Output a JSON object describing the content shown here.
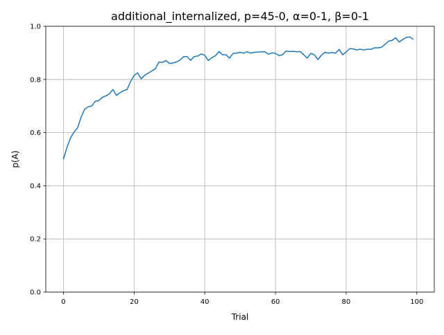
{
  "chart_data": {
    "type": "line",
    "title": "additional_internalized, p=45-0, α=0-1, β=0-1",
    "xlabel": "Trial",
    "ylabel": "p(A)",
    "xlim": [
      -5,
      104.95
    ],
    "ylim": [
      0.0,
      1.0
    ],
    "xticks": [
      0,
      20,
      40,
      60,
      80,
      100
    ],
    "yticks": [
      0.0,
      0.2,
      0.4,
      0.6,
      0.8,
      1.0
    ],
    "xtick_labels": [
      "0",
      "20",
      "40",
      "60",
      "80",
      "100"
    ],
    "ytick_labels": [
      "0.0",
      "0.2",
      "0.4",
      "0.6",
      "0.8",
      "1.0"
    ],
    "grid": true,
    "line_color": "#1f77b4",
    "series": [
      {
        "x": [
          0,
          1,
          2,
          3,
          4,
          5,
          6,
          7,
          8,
          9,
          10,
          11,
          12,
          13,
          14,
          15,
          16,
          17,
          18,
          19,
          20,
          21,
          22,
          23,
          24,
          25,
          26,
          27,
          28,
          29,
          30,
          31,
          32,
          33,
          34,
          35,
          36,
          37,
          38,
          39,
          40,
          41,
          42,
          43,
          44,
          45,
          46,
          47,
          48,
          49,
          50,
          51,
          52,
          53,
          54,
          55,
          56,
          57,
          58,
          59,
          60,
          61,
          62,
          63,
          64,
          65,
          66,
          67,
          68,
          69,
          70,
          71,
          72,
          73,
          74,
          75,
          76,
          77,
          78,
          79,
          80,
          81,
          82,
          83,
          84,
          85,
          86,
          87,
          88,
          89,
          90,
          91,
          92,
          93,
          94,
          95,
          96,
          97,
          98,
          99
        ],
        "values": [
          0.5,
          0.545,
          0.58,
          0.602,
          0.618,
          0.658,
          0.688,
          0.697,
          0.7,
          0.718,
          0.72,
          0.733,
          0.738,
          0.746,
          0.762,
          0.74,
          0.75,
          0.758,
          0.762,
          0.792,
          0.815,
          0.825,
          0.802,
          0.816,
          0.824,
          0.832,
          0.84,
          0.865,
          0.864,
          0.871,
          0.86,
          0.862,
          0.866,
          0.873,
          0.886,
          0.886,
          0.872,
          0.886,
          0.888,
          0.896,
          0.891,
          0.871,
          0.882,
          0.889,
          0.905,
          0.893,
          0.893,
          0.88,
          0.898,
          0.899,
          0.902,
          0.899,
          0.904,
          0.899,
          0.902,
          0.903,
          0.904,
          0.904,
          0.895,
          0.9,
          0.898,
          0.89,
          0.893,
          0.907,
          0.905,
          0.906,
          0.904,
          0.905,
          0.893,
          0.88,
          0.898,
          0.893,
          0.875,
          0.891,
          0.902,
          0.899,
          0.901,
          0.899,
          0.913,
          0.893,
          0.903,
          0.916,
          0.915,
          0.911,
          0.914,
          0.911,
          0.914,
          0.913,
          0.919,
          0.919,
          0.921,
          0.932,
          0.944,
          0.947,
          0.957,
          0.941,
          0.95,
          0.958,
          0.96,
          0.951
        ]
      }
    ]
  }
}
